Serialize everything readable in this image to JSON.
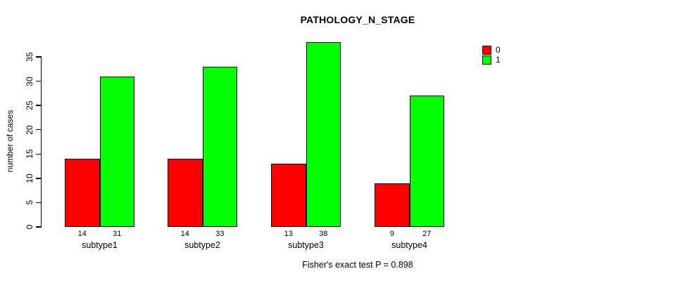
{
  "chart_data": {
    "type": "bar",
    "title": "PATHOLOGY_N_STAGE",
    "ylabel": "number of cases",
    "xlabel": "",
    "footer": "Fisher's exact test P = 0.898",
    "categories": [
      "subtype1",
      "subtype2",
      "subtype3",
      "subtype4"
    ],
    "series": [
      {
        "name": "0",
        "color": "#FF0000",
        "values": [
          14,
          14,
          13,
          9
        ]
      },
      {
        "name": "1",
        "color": "#00FF00",
        "values": [
          31,
          33,
          38,
          27
        ]
      }
    ],
    "bar_value_labels": [
      [
        "14",
        "31"
      ],
      [
        "14",
        "33"
      ],
      [
        "13",
        "38"
      ],
      [
        "9",
        "27"
      ]
    ],
    "ylim": [
      0,
      35
    ],
    "yticks": [
      0,
      5,
      10,
      15,
      20,
      25,
      30,
      35
    ],
    "grid": false,
    "legend_position": "top-right",
    "bar_edge_color": "#000000",
    "background_color": "#FFFFFF"
  }
}
